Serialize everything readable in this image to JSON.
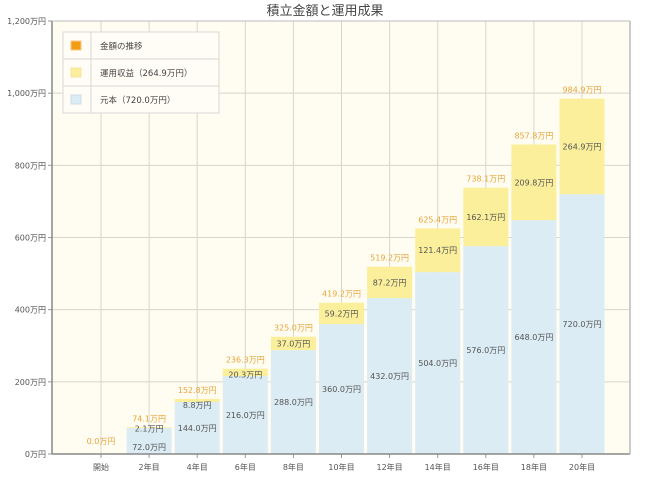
{
  "chart_data": {
    "type": "bar",
    "stacked": true,
    "title": "積立金額と運用成果",
    "xlabel": "",
    "ylabel": "",
    "ylim": [
      0,
      1200
    ],
    "y_ticks": [
      0,
      200,
      400,
      600,
      800,
      1000,
      1200
    ],
    "y_tick_labels": [
      "0万円",
      "200万円",
      "400万円",
      "600万円",
      "800万円",
      "1,000万円",
      "1,200万円"
    ],
    "grid": true,
    "legend_position": "top-left",
    "categories": [
      "開始",
      "2年目",
      "4年目",
      "6年目",
      "8年目",
      "10年目",
      "12年目",
      "14年目",
      "16年目",
      "18年目",
      "20年目"
    ],
    "legend": [
      {
        "label": "金額の推移",
        "color": "#f39c12"
      },
      {
        "label": "運用収益（264.9万円）",
        "color": "#fbef9b"
      },
      {
        "label": "元本（720.0万円）",
        "color": "#dbecf4"
      }
    ],
    "series": [
      {
        "name": "元本",
        "color": "#dbecf4",
        "values": [
          0,
          72.0,
          144.0,
          216.0,
          288.0,
          360.0,
          432.0,
          504.0,
          576.0,
          648.0,
          720.0
        ],
        "labels": [
          "",
          "72.0万円",
          "144.0万円",
          "216.0万円",
          "288.0万円",
          "360.0万円",
          "432.0万円",
          "504.0万円",
          "576.0万円",
          "648.0万円",
          "720.0万円"
        ]
      },
      {
        "name": "運用収益",
        "color": "#fbef9b",
        "values": [
          0,
          2.1,
          8.8,
          20.3,
          37.0,
          59.2,
          87.2,
          121.4,
          162.1,
          209.8,
          264.9
        ],
        "labels": [
          "",
          "2.1万円",
          "8.8万円",
          "20.3万円",
          "37.0万円",
          "59.2万円",
          "87.2万円",
          "121.4万円",
          "162.1万円",
          "209.8万円",
          "264.9万円"
        ]
      }
    ],
    "totals": [
      0.0,
      74.1,
      152.8,
      236.3,
      325.0,
      419.2,
      519.2,
      625.4,
      738.1,
      857.8,
      984.9
    ],
    "total_labels": [
      "0.0万円",
      "74.1万円",
      "152.8万円",
      "236.3万円",
      "325.0万円",
      "419.2万円",
      "519.2万円",
      "625.4万円",
      "738.1万円",
      "857.8万円",
      "984.9万円"
    ],
    "colors": {
      "plot_background": "#fffdf2",
      "grid": "#d8d6cc",
      "total_label": "#e8a53a",
      "bar_label": "#555555"
    }
  }
}
